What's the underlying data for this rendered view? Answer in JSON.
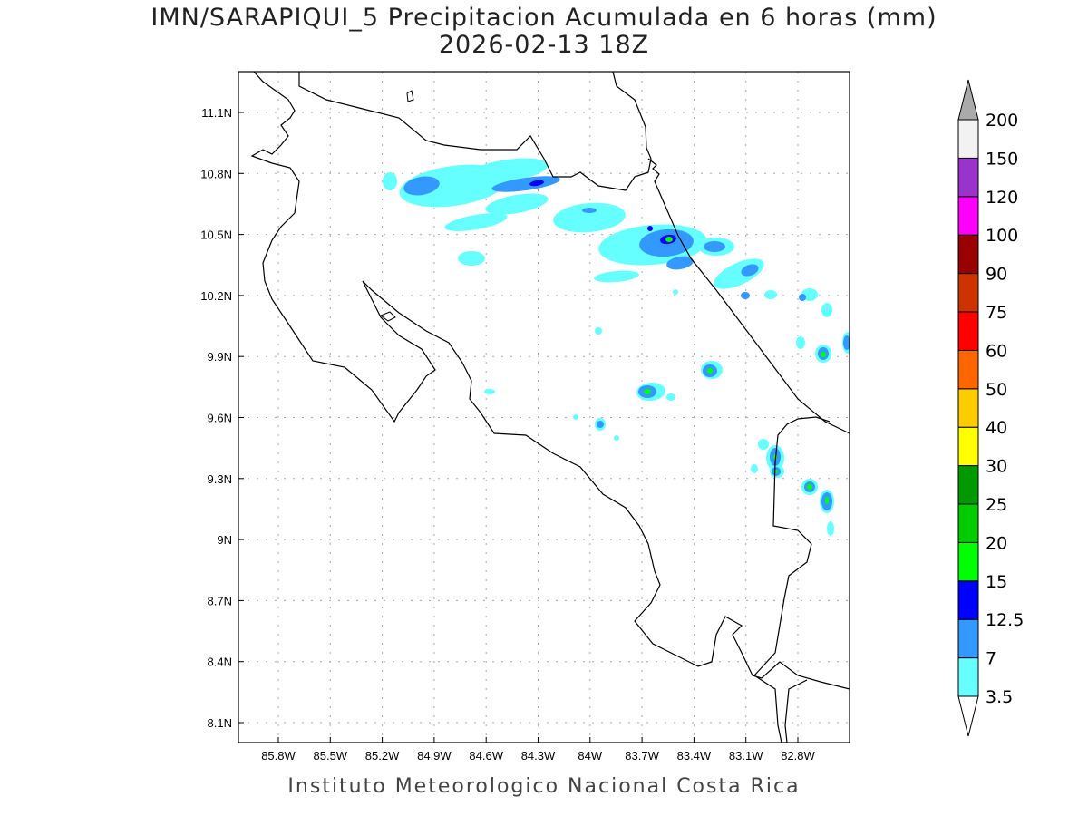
{
  "title": {
    "line1": "IMN/SARAPIQUI_5 Precipitacion Acumulada en 6 horas (mm)",
    "line2": "2026-02-13 18Z"
  },
  "footer": "Instituto Meteorologico Nacional Costa Rica",
  "map": {
    "lat_ticks": [
      "11.1N",
      "10.8N",
      "10.5N",
      "10.2N",
      "9.9N",
      "9.6N",
      "9.3N",
      "9N",
      "8.7N",
      "8.4N",
      "8.1N"
    ],
    "lon_ticks": [
      "85.8W",
      "85.5W",
      "85.2W",
      "84.9W",
      "84.6W",
      "84.3W",
      "84W",
      "83.7W",
      "83.4W",
      "83.1W",
      "82.8W"
    ]
  },
  "colorbar": {
    "labels": [
      "3.5",
      "7",
      "12.5",
      "15",
      "20",
      "25",
      "30",
      "40",
      "50",
      "60",
      "75",
      "90",
      "100",
      "120",
      "150",
      "200"
    ],
    "colors": [
      "#66ffff",
      "#3399ff",
      "#0000ff",
      "#00ff00",
      "#00cc00",
      "#009900",
      "#ffff00",
      "#ffcc00",
      "#ff6600",
      "#ff0000",
      "#cc3300",
      "#990000",
      "#ff00ff",
      "#9933cc",
      "#f2f2f2"
    ],
    "over_color": "#aaaaaa",
    "under_color": "#ffffff"
  }
}
